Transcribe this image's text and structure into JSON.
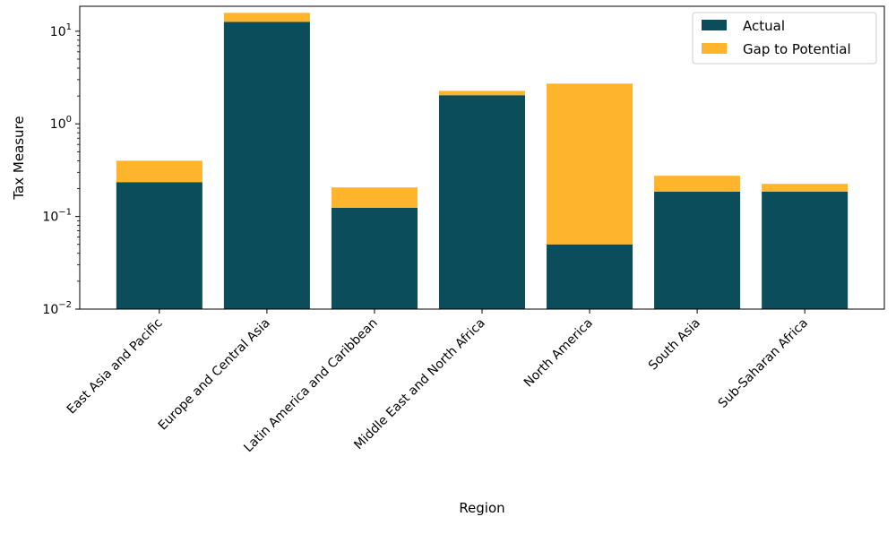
{
  "chart_data": {
    "type": "bar",
    "stacked": true,
    "title": "",
    "xlabel": "Region",
    "ylabel": "Tax Measure",
    "yscale": "log",
    "ylim": [
      0.01,
      18.6
    ],
    "yticks": [
      {
        "v": 0.01,
        "base": "10",
        "exp": "−2"
      },
      {
        "v": 0.1,
        "base": "10",
        "exp": "−1"
      },
      {
        "v": 1,
        "base": "10",
        "exp": "0"
      },
      {
        "v": 10,
        "base": "10",
        "exp": "1"
      }
    ],
    "categories": [
      "East Asia and Pacific",
      "Europe and Central Asia",
      "Latin America and Caribbean",
      "Middle East and North Africa",
      "North America",
      "South Asia",
      "Sub-Saharan Africa"
    ],
    "series": [
      {
        "name": "Actual",
        "color": "#0b4d5a",
        "values": [
          0.235,
          12.6,
          0.124,
          2.04,
          0.05,
          0.185,
          0.185
        ]
      },
      {
        "name": "Gap to Potential",
        "color": "#ffb42e",
        "values": [
          0.165,
          3.2,
          0.082,
          0.23,
          2.67,
          0.09,
          0.04
        ]
      }
    ],
    "legend": "top-right",
    "grid": false
  }
}
